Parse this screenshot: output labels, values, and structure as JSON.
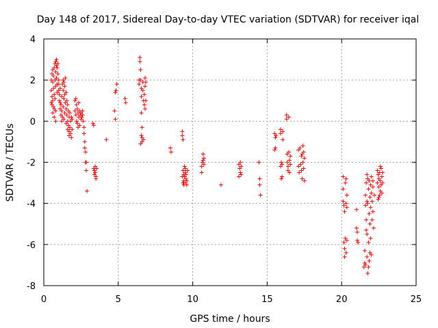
{
  "chart_data": {
    "type": "scatter",
    "title": "Day 148 of 2017, Sidereal Day-to-day VTEC variation (SDTVAR) for receiver iqal",
    "xlabel": "GPS time / hours",
    "ylabel": "SDTVAR / TECUs",
    "xlim": [
      0,
      25
    ],
    "ylim": [
      -8,
      4
    ],
    "xticks": [
      0,
      5,
      10,
      15,
      20,
      25
    ],
    "yticks": [
      -8,
      -6,
      -4,
      -2,
      0,
      2,
      4
    ],
    "grid": true,
    "marker": "+",
    "color": "#ff0000",
    "series": [
      {
        "name": "SDTVAR",
        "points": [
          [
            0.5,
            2.0
          ],
          [
            0.5,
            1.5
          ],
          [
            0.5,
            0.9
          ],
          [
            0.55,
            2.3
          ],
          [
            0.55,
            1.2
          ],
          [
            0.55,
            0.8
          ],
          [
            0.6,
            2.5
          ],
          [
            0.6,
            1.9
          ],
          [
            0.6,
            1.0
          ],
          [
            0.6,
            0.4
          ],
          [
            0.65,
            2.2
          ],
          [
            0.65,
            1.6
          ],
          [
            0.65,
            0.7
          ],
          [
            0.7,
            2.6
          ],
          [
            0.7,
            1.3
          ],
          [
            0.7,
            0.6
          ],
          [
            0.7,
            0.2
          ],
          [
            0.75,
            2.8
          ],
          [
            0.75,
            2.0
          ],
          [
            0.75,
            1.1
          ],
          [
            0.8,
            2.9
          ],
          [
            0.8,
            2.4
          ],
          [
            0.8,
            1.7
          ],
          [
            0.8,
            0.5
          ],
          [
            0.8,
            0.0
          ],
          [
            0.85,
            3.0
          ],
          [
            0.85,
            2.7
          ],
          [
            0.85,
            2.1
          ],
          [
            0.9,
            2.6
          ],
          [
            0.9,
            1.8
          ],
          [
            0.9,
            1.4
          ],
          [
            0.95,
            2.3
          ],
          [
            0.95,
            2.8
          ],
          [
            1.0,
            1.8
          ],
          [
            1.0,
            2.0
          ],
          [
            1.0,
            1.5
          ],
          [
            1.05,
            1.3
          ],
          [
            1.05,
            1.0
          ],
          [
            1.1,
            0.9
          ],
          [
            1.1,
            0.6
          ],
          [
            1.1,
            1.6
          ],
          [
            1.15,
            0.8
          ],
          [
            1.15,
            0.3
          ],
          [
            1.2,
            0.5
          ],
          [
            1.2,
            0.0
          ],
          [
            1.2,
            1.2
          ],
          [
            1.25,
            1.8
          ],
          [
            1.25,
            0.2
          ],
          [
            1.3,
            2.0
          ],
          [
            1.3,
            1.5
          ],
          [
            1.3,
            0.7
          ],
          [
            1.35,
            1.9
          ],
          [
            1.35,
            1.1
          ],
          [
            1.35,
            0.1
          ],
          [
            1.4,
            1.7
          ],
          [
            1.4,
            1.3
          ],
          [
            1.4,
            0.4
          ],
          [
            1.45,
            2.1
          ],
          [
            1.45,
            0.9
          ],
          [
            1.5,
            1.4
          ],
          [
            1.5,
            0.6
          ],
          [
            1.5,
            -0.1
          ],
          [
            1.55,
            1.0
          ],
          [
            1.55,
            0.3
          ],
          [
            1.6,
            0.8
          ],
          [
            1.6,
            0.0
          ],
          [
            1.6,
            -0.4
          ],
          [
            1.65,
            0.5
          ],
          [
            1.65,
            -0.2
          ],
          [
            1.7,
            0.2
          ],
          [
            1.7,
            -0.5
          ],
          [
            1.7,
            -0.7
          ],
          [
            1.75,
            0.4
          ],
          [
            1.75,
            -0.3
          ],
          [
            1.8,
            0.0
          ],
          [
            1.8,
            -0.6
          ],
          [
            1.85,
            0.2
          ],
          [
            1.85,
            -0.8
          ],
          [
            1.9,
            -0.4
          ],
          [
            1.9,
            0.1
          ],
          [
            2.1,
            1.0
          ],
          [
            2.1,
            0.5
          ],
          [
            2.15,
            1.1
          ],
          [
            2.15,
            0.3
          ],
          [
            2.2,
            0.8
          ],
          [
            2.2,
            0.0
          ],
          [
            2.25,
            0.6
          ],
          [
            2.25,
            -0.1
          ],
          [
            2.3,
            0.4
          ],
          [
            2.3,
            -0.3
          ],
          [
            2.35,
            0.9
          ],
          [
            2.35,
            0.2
          ],
          [
            2.4,
            0.5
          ],
          [
            2.4,
            -0.2
          ],
          [
            2.45,
            0.3
          ],
          [
            2.5,
            0.1
          ],
          [
            2.5,
            0.4
          ],
          [
            2.55,
            0.2
          ],
          [
            2.6,
            0.5
          ],
          [
            2.6,
            0.3
          ],
          [
            2.65,
            0.0
          ],
          [
            2.7,
            -0.6
          ],
          [
            2.7,
            -0.3
          ],
          [
            2.75,
            -1.0
          ],
          [
            2.75,
            -1.3
          ],
          [
            2.8,
            -2.0
          ],
          [
            2.8,
            -1.5
          ],
          [
            2.85,
            -2.4
          ],
          [
            2.85,
            -2.0
          ],
          [
            2.9,
            -3.4
          ],
          [
            3.3,
            -0.1
          ],
          [
            3.35,
            -0.2
          ],
          [
            3.35,
            -2.3
          ],
          [
            3.4,
            -2.4
          ],
          [
            3.4,
            -2.6
          ],
          [
            3.45,
            -2.5
          ],
          [
            3.45,
            -2.2
          ],
          [
            3.5,
            -2.7
          ],
          [
            3.5,
            -2.8
          ],
          [
            3.55,
            -2.3
          ],
          [
            4.2,
            -0.9
          ],
          [
            4.75,
            0.5
          ],
          [
            4.8,
            0.1
          ],
          [
            4.8,
            1.4
          ],
          [
            4.85,
            1.5
          ],
          [
            4.9,
            1.8
          ],
          [
            5.45,
            1.1
          ],
          [
            5.5,
            0.9
          ],
          [
            6.4,
            2.0
          ],
          [
            6.4,
            1.8
          ],
          [
            6.45,
            3.1
          ],
          [
            6.45,
            2.9
          ],
          [
            6.5,
            2.5
          ],
          [
            6.5,
            2.0
          ],
          [
            6.55,
            1.6
          ],
          [
            6.55,
            1.2
          ],
          [
            6.55,
            0.4
          ],
          [
            6.6,
            -0.3
          ],
          [
            6.6,
            -0.8
          ],
          [
            6.6,
            -1.0
          ],
          [
            6.65,
            1.9
          ],
          [
            6.65,
            1.5
          ],
          [
            6.7,
            1.0
          ],
          [
            6.7,
            -0.9
          ],
          [
            6.75,
            1.3
          ],
          [
            6.75,
            0.8
          ],
          [
            6.8,
            2.1
          ],
          [
            6.8,
            1.7
          ],
          [
            6.8,
            0.6
          ],
          [
            6.85,
            1.0
          ],
          [
            6.85,
            1.9
          ],
          [
            6.5,
            -1.1
          ],
          [
            6.55,
            -0.7
          ],
          [
            8.5,
            -1.3
          ],
          [
            8.55,
            -1.5
          ],
          [
            9.3,
            -0.5
          ],
          [
            9.3,
            -0.7
          ],
          [
            9.35,
            -0.9
          ],
          [
            9.35,
            -2.4
          ],
          [
            9.4,
            -2.6
          ],
          [
            9.4,
            -2.9
          ],
          [
            9.4,
            -3.1
          ],
          [
            9.45,
            -2.2
          ],
          [
            9.45,
            -2.7
          ],
          [
            9.5,
            -2.5
          ],
          [
            9.5,
            -3.0
          ],
          [
            9.5,
            -2.3
          ],
          [
            9.55,
            -2.8
          ],
          [
            9.55,
            -2.6
          ],
          [
            9.6,
            -2.9
          ],
          [
            9.6,
            -3.1
          ],
          [
            9.65,
            -2.4
          ],
          [
            9.3,
            -2.7
          ],
          [
            9.35,
            -3.0
          ],
          [
            10.6,
            -2.5
          ],
          [
            10.6,
            -2.2
          ],
          [
            10.65,
            -2.0
          ],
          [
            10.7,
            -1.6
          ],
          [
            10.7,
            -1.9
          ],
          [
            10.75,
            -2.1
          ],
          [
            10.75,
            -1.8
          ],
          [
            11.9,
            -3.1
          ],
          [
            13.1,
            -2.1
          ],
          [
            13.1,
            -2.7
          ],
          [
            13.15,
            -2.3
          ],
          [
            13.2,
            -2.5
          ],
          [
            13.2,
            -2.0
          ],
          [
            13.25,
            -2.2
          ],
          [
            13.25,
            -2.6
          ],
          [
            14.45,
            -2.0
          ],
          [
            14.5,
            -2.8
          ],
          [
            14.5,
            -3.1
          ],
          [
            14.55,
            -3.6
          ],
          [
            15.5,
            -0.6
          ],
          [
            15.5,
            -1.4
          ],
          [
            15.55,
            -0.8
          ],
          [
            15.55,
            -1.3
          ],
          [
            15.6,
            -0.7
          ],
          [
            15.9,
            -0.4
          ],
          [
            15.9,
            -0.6
          ],
          [
            15.9,
            -2.2
          ],
          [
            15.95,
            -2.0
          ],
          [
            15.95,
            -2.8
          ],
          [
            16.0,
            -2.7
          ],
          [
            16.0,
            -2.1
          ],
          [
            16.05,
            -0.5
          ],
          [
            16.05,
            -0.9
          ],
          [
            16.3,
            0.3
          ],
          [
            16.3,
            0.1
          ],
          [
            16.35,
            -1.6
          ],
          [
            16.35,
            -2.0
          ],
          [
            16.4,
            -2.2
          ],
          [
            16.4,
            -2.4
          ],
          [
            16.45,
            -1.5
          ],
          [
            16.45,
            0.2
          ],
          [
            16.5,
            -1.9
          ],
          [
            16.5,
            -2.5
          ],
          [
            16.55,
            -2.1
          ],
          [
            16.55,
            -1.7
          ],
          [
            17.1,
            -1.4
          ],
          [
            17.1,
            -2.2
          ],
          [
            17.15,
            -2.5
          ],
          [
            17.2,
            -1.3
          ],
          [
            17.25,
            -2.1
          ],
          [
            17.3,
            -1.7
          ],
          [
            17.3,
            -2.4
          ],
          [
            17.35,
            -1.6
          ],
          [
            17.35,
            -2.8
          ],
          [
            17.4,
            -2.0
          ],
          [
            17.4,
            -1.2
          ],
          [
            17.45,
            -1.5
          ],
          [
            17.45,
            -2.3
          ],
          [
            17.5,
            -2.9
          ],
          [
            17.5,
            -1.8
          ],
          [
            20.1,
            -2.7
          ],
          [
            20.1,
            -3.3
          ],
          [
            20.1,
            -3.9
          ],
          [
            20.15,
            -4.1
          ],
          [
            20.15,
            -5.9
          ],
          [
            20.2,
            -6.2
          ],
          [
            20.2,
            -6.6
          ],
          [
            20.2,
            -4.4
          ],
          [
            20.25,
            -5.7
          ],
          [
            20.25,
            -3.0
          ],
          [
            20.3,
            -2.8
          ],
          [
            20.3,
            -4.0
          ],
          [
            20.3,
            -6.4
          ],
          [
            20.35,
            -3.6
          ],
          [
            20.35,
            -4.2
          ],
          [
            20.35,
            -5.8
          ],
          [
            21.0,
            -4.3
          ],
          [
            21.0,
            -5.2
          ],
          [
            21.05,
            -5.8
          ],
          [
            21.05,
            -5.4
          ],
          [
            21.1,
            -5.9
          ],
          [
            21.5,
            -7.1
          ],
          [
            21.55,
            -6.9
          ],
          [
            21.6,
            -7.0
          ],
          [
            21.6,
            -3.6
          ],
          [
            21.65,
            -3.0
          ],
          [
            21.65,
            -4.8
          ],
          [
            21.7,
            -2.6
          ],
          [
            21.7,
            -5.5
          ],
          [
            21.7,
            -6.6
          ],
          [
            21.75,
            -7.4
          ],
          [
            21.75,
            -2.8
          ],
          [
            21.75,
            -4.0
          ],
          [
            21.8,
            -3.3
          ],
          [
            21.8,
            -5.9
          ],
          [
            21.8,
            -7.1
          ],
          [
            21.85,
            -2.9
          ],
          [
            21.85,
            -4.5
          ],
          [
            21.85,
            -6.8
          ],
          [
            21.9,
            -3.7
          ],
          [
            21.9,
            -5.0
          ],
          [
            21.9,
            -6.4
          ],
          [
            21.95,
            -3.1
          ],
          [
            21.95,
            -4.2
          ],
          [
            21.95,
            -5.7
          ],
          [
            22.0,
            -2.7
          ],
          [
            22.0,
            -3.5
          ],
          [
            22.0,
            -6.5
          ],
          [
            22.05,
            -4.8
          ],
          [
            22.05,
            -3.9
          ],
          [
            22.1,
            -2.9
          ],
          [
            22.1,
            -4.4
          ],
          [
            22.1,
            -3.2
          ],
          [
            22.15,
            -5.2
          ],
          [
            22.2,
            -3.6
          ],
          [
            21.55,
            -6.3
          ],
          [
            21.6,
            -4.1
          ],
          [
            21.65,
            -5.3
          ],
          [
            21.7,
            -3.9
          ],
          [
            22.4,
            -2.4
          ],
          [
            22.4,
            -3.0
          ],
          [
            22.45,
            -2.6
          ],
          [
            22.45,
            -3.8
          ],
          [
            22.5,
            -2.8
          ],
          [
            22.5,
            -3.2
          ],
          [
            22.55,
            -2.5
          ],
          [
            22.55,
            -3.6
          ],
          [
            22.6,
            -2.9
          ],
          [
            22.6,
            -3.4
          ],
          [
            22.65,
            -2.3
          ],
          [
            22.65,
            -3.1
          ],
          [
            22.7,
            -2.7
          ],
          [
            22.7,
            -3.5
          ],
          [
            22.75,
            -2.5
          ],
          [
            22.75,
            -3.0
          ],
          [
            22.5,
            -3.7
          ],
          [
            22.6,
            -2.2
          ]
        ]
      }
    ]
  }
}
